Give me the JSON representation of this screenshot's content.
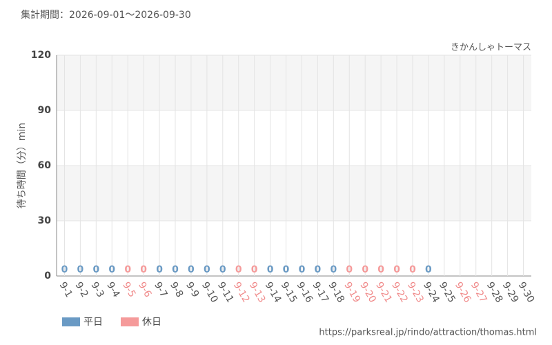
{
  "chart_data": {
    "type": "bar",
    "title": "集計期間：2026-09-01～2026-09-30",
    "subtitle": "きかんしゃトーマス",
    "y_label": "待ち時間（分）min",
    "source": "https://parksreal.jp/rindo/attraction/thomas.html",
    "categories": [
      "9-1",
      "9-2",
      "9-3",
      "9-4",
      "9-5",
      "9-6",
      "9-7",
      "9-8",
      "9-9",
      "9-10",
      "9-11",
      "9-12",
      "9-13",
      "9-14",
      "9-15",
      "9-16",
      "9-17",
      "9-18",
      "9-19",
      "9-20",
      "9-21",
      "9-22",
      "9-23",
      "9-24",
      "9-25",
      "9-26",
      "9-27",
      "9-28",
      "9-29",
      "9-30"
    ],
    "category_colors": [
      "#555",
      "#555",
      "#555",
      "#555",
      "#f08a8a",
      "#f08a8a",
      "#555",
      "#555",
      "#555",
      "#555",
      "#555",
      "#f08a8a",
      "#f08a8a",
      "#555",
      "#555",
      "#555",
      "#555",
      "#555",
      "#f08a8a",
      "#f08a8a",
      "#f08a8a",
      "#f08a8a",
      "#f08a8a",
      "#555",
      "#555",
      "#f08a8a",
      "#f08a8a",
      "#555",
      "#555",
      "#555"
    ],
    "series": [
      {
        "name": "平日",
        "color": "#6a9ac4",
        "values": [
          0,
          0,
          0,
          0,
          null,
          null,
          0,
          0,
          0,
          0,
          0,
          null,
          null,
          0,
          0,
          0,
          0,
          0,
          null,
          null,
          null,
          null,
          null,
          0,
          null,
          null,
          null,
          null,
          null,
          null
        ]
      },
      {
        "name": "休日",
        "color": "#f59a9a",
        "values": [
          null,
          null,
          null,
          null,
          0,
          0,
          null,
          null,
          null,
          null,
          null,
          0,
          0,
          null,
          null,
          null,
          null,
          null,
          0,
          0,
          0,
          0,
          0,
          null,
          null,
          null,
          null,
          null,
          null,
          null
        ]
      }
    ],
    "ylim": [
      0,
      120
    ],
    "yticks": [
      0,
      30,
      60,
      90,
      120
    ],
    "grid": true
  }
}
